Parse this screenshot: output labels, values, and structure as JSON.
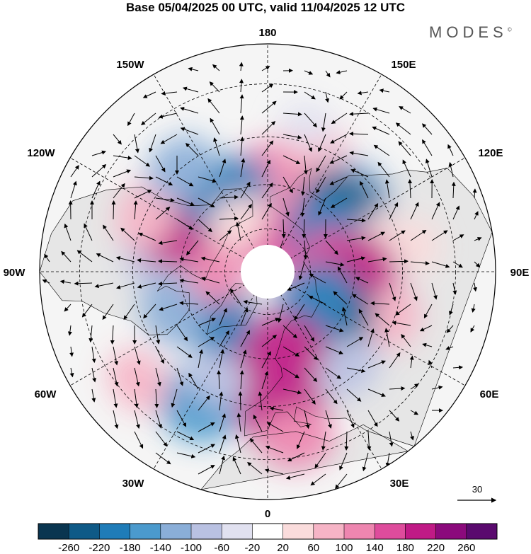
{
  "title": "Base 05/04/2025 00 UTC, valid 11/04/2025 12 UTC",
  "brand": "MODES",
  "brand_mark": "©",
  "longitude_labels": {
    "l180": "180",
    "l150w": "150W",
    "l150e": "150E",
    "l120w": "120W",
    "l120e": "120E",
    "l90w": "90W",
    "l90e": "90E",
    "l60w": "60W",
    "l60e": "60E",
    "l30w": "30W",
    "l30e": "30E",
    "l0": "0"
  },
  "reference_vector": {
    "label": "30"
  },
  "colorbar": {
    "labels": [
      "-260",
      "-220",
      "-180",
      "-140",
      "-100",
      "-60",
      "-20",
      "20",
      "60",
      "100",
      "140",
      "180",
      "220",
      "260"
    ],
    "colors": [
      "#0a3550",
      "#0f5a87",
      "#1f7cb8",
      "#4b9acd",
      "#8aaed8",
      "#b9c1e2",
      "#e1e1f0",
      "#ffffff",
      "#fadcdc",
      "#f6b4c6",
      "#ee86b0",
      "#de4c9c",
      "#c01a86",
      "#8b0a7c",
      "#5a0a6e"
    ]
  },
  "map_style": {
    "land": "#e6e6e6",
    "ocean": "#f5f5f5",
    "outline": "#000000"
  },
  "anomaly_cells": [
    {
      "lat": 55,
      "lon": 175,
      "value": 110
    },
    {
      "lat": 65,
      "lon": 170,
      "value": 120
    },
    {
      "lat": 45,
      "lon": 160,
      "value": 90
    },
    {
      "lat": 72,
      "lon": -175,
      "value": 100
    },
    {
      "lat": 78,
      "lon": 160,
      "value": 170
    },
    {
      "lat": 50,
      "lon": 130,
      "value": -120
    },
    {
      "lat": 58,
      "lon": 125,
      "value": -250
    },
    {
      "lat": 66,
      "lon": 118,
      "value": -200
    },
    {
      "lat": 50,
      "lon": 105,
      "value": 40
    },
    {
      "lat": 40,
      "lon": 100,
      "value": 30
    },
    {
      "lat": 68,
      "lon": 90,
      "value": 170
    },
    {
      "lat": 58,
      "lon": 85,
      "value": 200
    },
    {
      "lat": 45,
      "lon": 70,
      "value": 70
    },
    {
      "lat": 62,
      "lon": 48,
      "value": -240
    },
    {
      "lat": 70,
      "lon": 55,
      "value": -180
    },
    {
      "lat": 48,
      "lon": 40,
      "value": -90
    },
    {
      "lat": 62,
      "lon": 8,
      "value": 200
    },
    {
      "lat": 45,
      "lon": 5,
      "value": 190
    },
    {
      "lat": 35,
      "lon": 10,
      "value": 120
    },
    {
      "lat": 40,
      "lon": -28,
      "value": -170
    },
    {
      "lat": 50,
      "lon": -25,
      "value": -60
    },
    {
      "lat": 35,
      "lon": -50,
      "value": 90
    },
    {
      "lat": 66,
      "lon": -55,
      "value": -200
    },
    {
      "lat": 55,
      "lon": -68,
      "value": -120
    },
    {
      "lat": 72,
      "lon": -95,
      "value": 110
    },
    {
      "lat": 50,
      "lon": -100,
      "value": -80
    },
    {
      "lat": 55,
      "lon": -118,
      "value": 200
    },
    {
      "lat": 45,
      "lon": -115,
      "value": 100
    },
    {
      "lat": 60,
      "lon": -152,
      "value": -190
    },
    {
      "lat": 45,
      "lon": -140,
      "value": -110
    },
    {
      "lat": 70,
      "lon": -150,
      "value": 60
    },
    {
      "lat": 40,
      "lon": 165,
      "value": -30
    }
  ]
}
